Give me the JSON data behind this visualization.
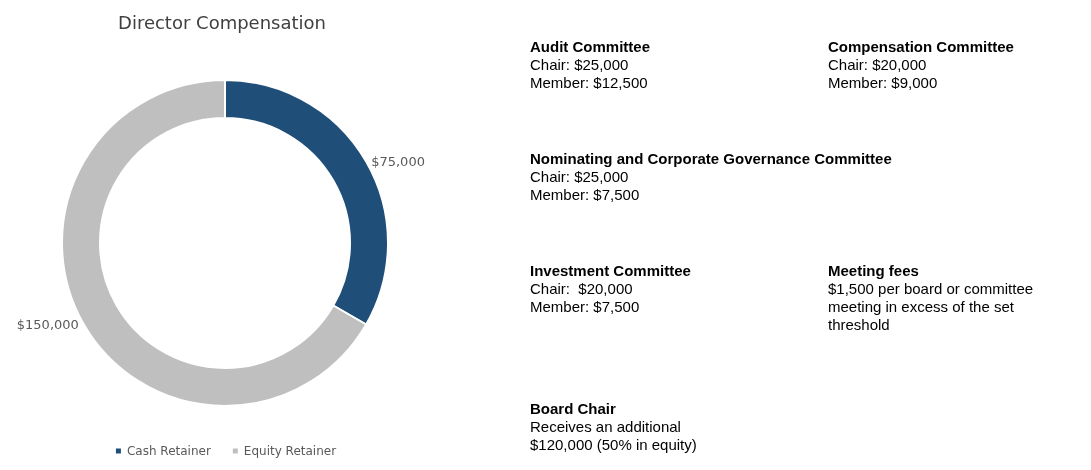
{
  "chart_data": [
    {
      "type": "donut",
      "title": "Director Compensation",
      "categories": [
        "Cash Retainer",
        "Equity Retainer"
      ],
      "values": [
        75000,
        150000
      ],
      "colors": [
        "#1f4e79",
        "#bfbfbf"
      ],
      "value_labels": [
        "$75,000",
        "$150,000"
      ],
      "legend": "bottom"
    },
    {
      "type": "other",
      "annotations": [
        "Audit Committee\nChair: $25,000\nMember: $12,500",
        "Compensation Committee\nChair: $20,000\nMember: $9,000",
        "Nominating and Corporate Governance Committee\nChair: $25,000\nMember: $7,500",
        "Investment Committee\nChair:  $20,000\nMember: $7,500",
        "Meeting fees\n$1,500 per board or committee meeting in excess of the set threshold",
        "Board Chair\nReceives an additional $120,000 (50% in equity)"
      ]
    }
  ]
}
